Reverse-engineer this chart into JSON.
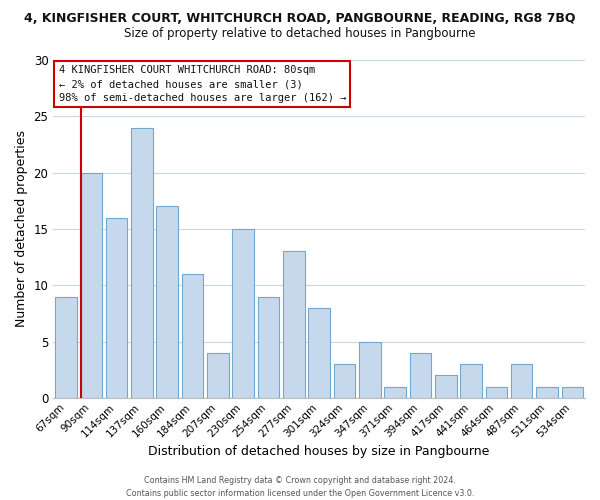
{
  "title_line1": "4, KINGFISHER COURT, WHITCHURCH ROAD, PANGBOURNE, READING, RG8 7BQ",
  "title_line2": "Size of property relative to detached houses in Pangbourne",
  "xlabel": "Distribution of detached houses by size in Pangbourne",
  "ylabel": "Number of detached properties",
  "bar_labels": [
    "67sqm",
    "90sqm",
    "114sqm",
    "137sqm",
    "160sqm",
    "184sqm",
    "207sqm",
    "230sqm",
    "254sqm",
    "277sqm",
    "301sqm",
    "324sqm",
    "347sqm",
    "371sqm",
    "394sqm",
    "417sqm",
    "441sqm",
    "464sqm",
    "487sqm",
    "511sqm",
    "534sqm"
  ],
  "bar_values": [
    9,
    20,
    16,
    24,
    17,
    11,
    4,
    15,
    9,
    13,
    8,
    3,
    5,
    1,
    4,
    2,
    3,
    1,
    3,
    1,
    1
  ],
  "bar_color": "#c6d9ec",
  "bar_edge_color": "#6fa8d0",
  "marker_line_color": "#cc0000",
  "ylim": [
    0,
    30
  ],
  "yticks": [
    0,
    5,
    10,
    15,
    20,
    25,
    30
  ],
  "annotation_title": "4 KINGFISHER COURT WHITCHURCH ROAD: 80sqm",
  "annotation_line2": "← 2% of detached houses are smaller (3)",
  "annotation_line3": "98% of semi-detached houses are larger (162) →",
  "annotation_box_color": "#ffffff",
  "annotation_box_edge": "#cc0000",
  "footer_line1": "Contains HM Land Registry data © Crown copyright and database right 2024.",
  "footer_line2": "Contains public sector information licensed under the Open Government Licence v3.0.",
  "background_color": "#ffffff",
  "grid_color": "#c8d8e8",
  "fig_width": 6.0,
  "fig_height": 5.0,
  "dpi": 100
}
